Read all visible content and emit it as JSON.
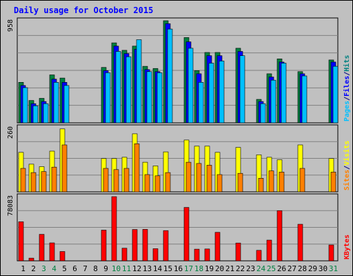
{
  "chart_data": [
    {
      "type": "bar",
      "title": "Daily usage for October 2015",
      "panel": "hits-files-pages",
      "ymax_label": "958",
      "ylim": [
        0,
        958
      ],
      "legend_right": [
        {
          "label": "Pages",
          "color": "#00c0ff"
        },
        {
          "label": "/",
          "color": "#000080"
        },
        {
          "label": "Files",
          "color": "#0000ff"
        },
        {
          "label": "/",
          "color": "#000080"
        },
        {
          "label": "Hits",
          "color": "#008080"
        }
      ],
      "series": [
        {
          "name": "Hits",
          "color": "#008040",
          "values": [
            380,
            210,
            230,
            450,
            420,
            0,
            0,
            0,
            520,
            750,
            680,
            720,
            530,
            510,
            958,
            0,
            800,
            490,
            660,
            660,
            0,
            700,
            0,
            220,
            460,
            600,
            0,
            480,
            0,
            0,
            590
          ]
        },
        {
          "name": "Files",
          "color": "#0000ff",
          "values": [
            350,
            180,
            200,
            410,
            380,
            0,
            0,
            0,
            490,
            720,
            650,
            690,
            500,
            480,
            930,
            0,
            760,
            460,
            630,
            630,
            0,
            670,
            0,
            200,
            430,
            570,
            0,
            460,
            0,
            0,
            570
          ]
        },
        {
          "name": "Pages",
          "color": "#00c0ff",
          "values": [
            330,
            160,
            180,
            380,
            350,
            0,
            0,
            0,
            470,
            670,
            620,
            780,
            480,
            470,
            880,
            0,
            700,
            380,
            560,
            580,
            0,
            630,
            0,
            180,
            400,
            560,
            0,
            440,
            0,
            0,
            530
          ]
        }
      ]
    },
    {
      "type": "bar",
      "panel": "visits-sites",
      "ymax_label": "260",
      "ylim": [
        0,
        260
      ],
      "legend_right": [
        {
          "label": "Sites",
          "color": "#ff8000"
        },
        {
          "label": "/",
          "color": "#000080"
        },
        {
          "label": "Visits",
          "color": "#ffff00"
        }
      ],
      "series": [
        {
          "name": "Visits",
          "color": "#ffff00",
          "values": [
            160,
            112,
            102,
            165,
            255,
            0,
            0,
            0,
            135,
            135,
            140,
            235,
            120,
            105,
            162,
            0,
            210,
            185,
            185,
            160,
            0,
            180,
            0,
            150,
            140,
            130,
            0,
            190,
            0,
            0,
            135
          ]
        },
        {
          "name": "Sites",
          "color": "#ff8000",
          "values": [
            95,
            78,
            82,
            100,
            190,
            0,
            0,
            0,
            95,
            90,
            95,
            195,
            70,
            65,
            78,
            0,
            120,
            115,
            108,
            70,
            0,
            75,
            0,
            55,
            85,
            80,
            0,
            95,
            0,
            0,
            80
          ]
        }
      ]
    },
    {
      "type": "bar",
      "panel": "kbytes",
      "ymax_label": "78083",
      "ylim": [
        0,
        78083
      ],
      "legend_right": [
        {
          "label": "KBytes",
          "color": "#ff0000"
        }
      ],
      "series": [
        {
          "name": "KBytes",
          "color": "#ff0000",
          "values": [
            47500,
            3300,
            32200,
            21800,
            11300,
            0,
            0,
            0,
            37400,
            78083,
            15400,
            38100,
            38300,
            14800,
            36800,
            0,
            65000,
            14200,
            14400,
            34700,
            0,
            21700,
            0,
            12800,
            25200,
            61000,
            0,
            44500,
            0,
            0,
            19300
          ]
        }
      ]
    }
  ],
  "x_labels": [
    {
      "t": "1",
      "c": "#000000"
    },
    {
      "t": "2",
      "c": "#000000"
    },
    {
      "t": "3",
      "c": "#008040"
    },
    {
      "t": "4",
      "c": "#008040"
    },
    {
      "t": "5",
      "c": "#000000"
    },
    {
      "t": "6",
      "c": "#000000"
    },
    {
      "t": "7",
      "c": "#000000"
    },
    {
      "t": "8",
      "c": "#000000"
    },
    {
      "t": "9",
      "c": "#000000"
    },
    {
      "t": "10",
      "c": "#008040"
    },
    {
      "t": "11",
      "c": "#008040"
    },
    {
      "t": "12",
      "c": "#000000"
    },
    {
      "t": "13",
      "c": "#000000"
    },
    {
      "t": "14",
      "c": "#000000"
    },
    {
      "t": "15",
      "c": "#000000"
    },
    {
      "t": "16",
      "c": "#000000"
    },
    {
      "t": "17",
      "c": "#008040"
    },
    {
      "t": "18",
      "c": "#008040"
    },
    {
      "t": "19",
      "c": "#000000"
    },
    {
      "t": "20",
      "c": "#000000"
    },
    {
      "t": "21",
      "c": "#000000"
    },
    {
      "t": "22",
      "c": "#000000"
    },
    {
      "t": "23",
      "c": "#000000"
    },
    {
      "t": "24",
      "c": "#008040"
    },
    {
      "t": "25",
      "c": "#008040"
    },
    {
      "t": "26",
      "c": "#000000"
    },
    {
      "t": "27",
      "c": "#000000"
    },
    {
      "t": "28",
      "c": "#000000"
    },
    {
      "t": "29",
      "c": "#000000"
    },
    {
      "t": "30",
      "c": "#000000"
    },
    {
      "t": "31",
      "c": "#008040"
    }
  ],
  "colors": {
    "title": "#0000ff",
    "background": "#c0c0c0",
    "panel_bg": "#c0c0c0",
    "grid": "#808080"
  }
}
